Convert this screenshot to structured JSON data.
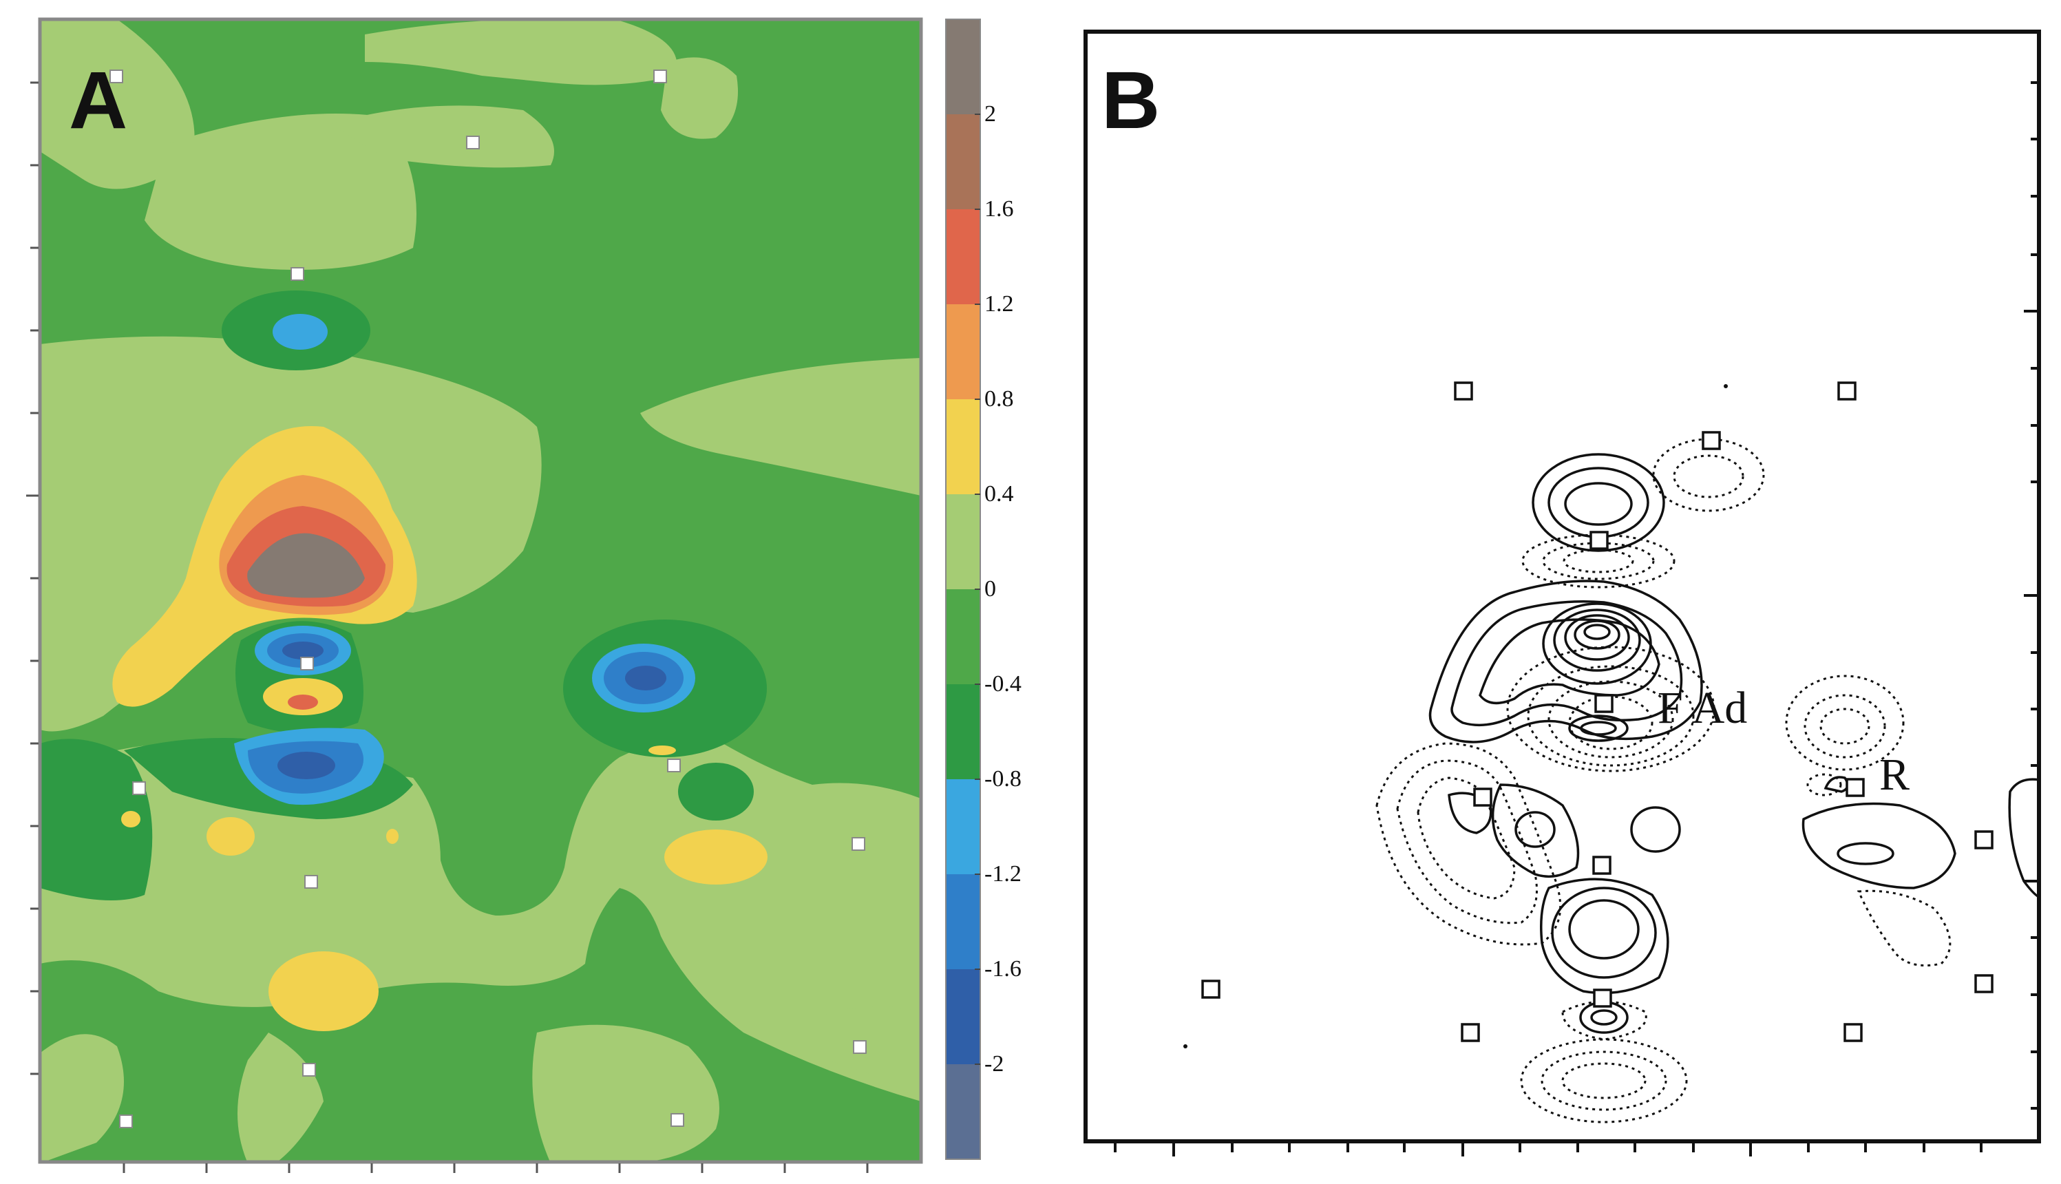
{
  "panels": {
    "a": {
      "letter": "A",
      "colorbar": {
        "tick_labels": [
          "2",
          "1.6",
          "1.2",
          "0.8",
          "0.4",
          "0",
          "-0.4",
          "-0.8",
          "-1.2",
          "-1.6",
          "-2"
        ],
        "band_colors": [
          "#857a72",
          "#a97358",
          "#e0664b",
          "#ee9a4f",
          "#f2d24f",
          "#a5cc74",
          "#4fa849",
          "#2e9a44",
          "#3aa7e0",
          "#2f7fc9",
          "#2f5fa8",
          "#5b6f93"
        ]
      },
      "palette": {
        "background": "#4fa849",
        "light_green": "#a5cc74",
        "dark_green": "#2e9a44",
        "yellow": "#f2d24f",
        "orange": "#ee9a4f",
        "red": "#e0664b",
        "brown": "#857a72",
        "sky_blue": "#3aa7e0",
        "blue": "#2f7fc9",
        "navy": "#2f5fa8"
      }
    },
    "b": {
      "letter": "B",
      "labels": {
        "f_ad": "F Ad",
        "r": "R"
      }
    }
  }
}
